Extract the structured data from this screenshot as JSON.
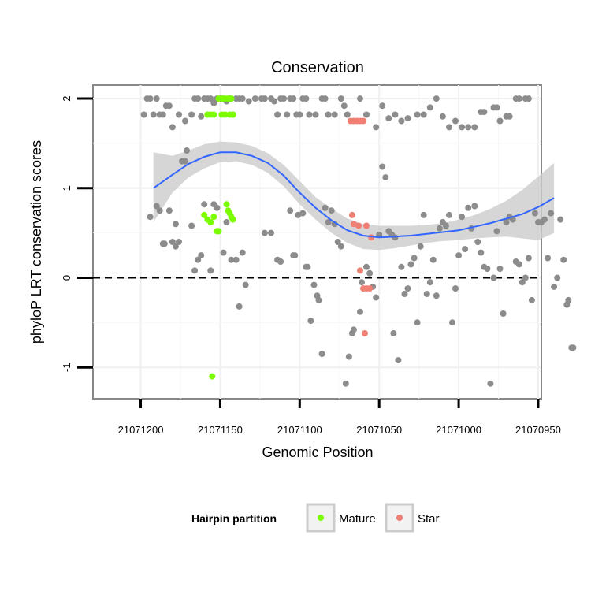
{
  "chart_data": {
    "type": "scatter",
    "title": "Conservation",
    "xlabel": "Genomic Position",
    "ylabel": "phyloP LRT conservation scores",
    "x_reversed": true,
    "xlim": [
      21071230,
      21070948
    ],
    "ylim": [
      -1.35,
      2.15
    ],
    "x_ticks": [
      21071200,
      21071150,
      21071100,
      21071050,
      21071000,
      21070950
    ],
    "x_tick_labels": [
      "21071200",
      "21071150",
      "21071100",
      "21071050",
      "21071000",
      "21070950"
    ],
    "y_ticks": [
      -1,
      0,
      1,
      2
    ],
    "y_tick_labels": [
      "-1",
      "0",
      "1",
      "2"
    ],
    "reference_line": {
      "y": 0,
      "style": "dashed"
    },
    "grid": true,
    "legend": {
      "title": "Hairpin partition",
      "position": "bottom",
      "entries": [
        {
          "label": "Mature",
          "color": "#7CFC00"
        },
        {
          "label": "Star",
          "color": "#F07F74"
        }
      ]
    },
    "colors": {
      "other": "#8C8C8C",
      "Mature": "#7CFC00",
      "Star": "#F07F74",
      "smooth": "#3366FF",
      "ribbon": "#CCCCCC"
    },
    "series": [
      {
        "name": "",
        "color": "#8C8C8C",
        "points": [
          [
            21071198,
            1.82
          ],
          [
            21071196,
            2.0
          ],
          [
            21071194,
            2.0
          ],
          [
            21071192,
            1.82
          ],
          [
            21071190,
            2.0
          ],
          [
            21071188,
            1.82
          ],
          [
            21071186,
            1.82
          ],
          [
            21071184,
            1.92
          ],
          [
            21071182,
            1.92
          ],
          [
            21071180,
            1.68
          ],
          [
            21071176,
            1.82
          ],
          [
            21071172,
            1.75
          ],
          [
            21071168,
            1.82
          ],
          [
            21071166,
            2.0
          ],
          [
            21071164,
            2.0
          ],
          [
            21071162,
            1.8
          ],
          [
            21071160,
            2.0
          ],
          [
            21071158,
            2.0
          ],
          [
            21071156,
            2.0
          ],
          [
            21071154,
            1.95
          ],
          [
            21071152,
            2.0
          ],
          [
            21071150,
            2.0
          ],
          [
            21071148,
            2.0
          ],
          [
            21071146,
            1.97
          ],
          [
            21071144,
            2.0
          ],
          [
            21071142,
            1.82
          ],
          [
            21071140,
            2.0
          ],
          [
            21071138,
            2.0
          ],
          [
            21071136,
            2.0
          ],
          [
            21071132,
            1.97
          ],
          [
            21071128,
            2.0
          ],
          [
            21071124,
            2.0
          ],
          [
            21071122,
            2.0
          ],
          [
            21071118,
            2.0
          ],
          [
            21071116,
            1.97
          ],
          [
            21071114,
            1.82
          ],
          [
            21071112,
            2.0
          ],
          [
            21071110,
            2.0
          ],
          [
            21071108,
            1.82
          ],
          [
            21071106,
            2.0
          ],
          [
            21071104,
            2.0
          ],
          [
            21071102,
            1.82
          ],
          [
            21071100,
            1.82
          ],
          [
            21071098,
            2.0
          ],
          [
            21071096,
            2.0
          ],
          [
            21071094,
            1.82
          ],
          [
            21071090,
            1.82
          ],
          [
            21071086,
            2.0
          ],
          [
            21071084,
            2.0
          ],
          [
            21071082,
            1.82
          ],
          [
            21071078,
            1.82
          ],
          [
            21071074,
            2.0
          ],
          [
            21071072,
            1.92
          ],
          [
            21071070,
            1.82
          ],
          [
            21071062,
            2.0
          ],
          [
            21071058,
            1.82
          ],
          [
            21071052,
            1.68
          ],
          [
            21071048,
            1.92
          ],
          [
            21071044,
            1.78
          ],
          [
            21071040,
            1.82
          ],
          [
            21071036,
            1.75
          ],
          [
            21071032,
            1.78
          ],
          [
            21071026,
            1.82
          ],
          [
            21071022,
            1.82
          ],
          [
            21071018,
            1.9
          ],
          [
            21071014,
            2.0
          ],
          [
            21071010,
            1.8
          ],
          [
            21071006,
            1.68
          ],
          [
            21071002,
            1.75
          ],
          [
            21070998,
            1.68
          ],
          [
            21070994,
            1.68
          ],
          [
            21070990,
            1.68
          ],
          [
            21070986,
            1.85
          ],
          [
            21070984,
            1.85
          ],
          [
            21070978,
            1.9
          ],
          [
            21070976,
            1.9
          ],
          [
            21070974,
            1.75
          ],
          [
            21070970,
            1.8
          ],
          [
            21070968,
            1.8
          ],
          [
            21070964,
            2.0
          ],
          [
            21070962,
            2.0
          ],
          [
            21070958,
            2.0
          ],
          [
            21070956,
            2.0
          ],
          [
            21071194,
            0.68
          ],
          [
            21071190,
            0.8
          ],
          [
            21071188,
            0.75
          ],
          [
            21071186,
            0.38
          ],
          [
            21071185,
            0.38
          ],
          [
            21071182,
            0.75
          ],
          [
            21071180,
            0.4
          ],
          [
            21071178,
            0.35
          ],
          [
            21071178,
            0.6
          ],
          [
            21071176,
            0.4
          ],
          [
            21071174,
            1.3
          ],
          [
            21071172,
            1.3
          ],
          [
            21071171,
            1.42
          ],
          [
            21071168,
            0.58
          ],
          [
            21071166,
            0.08
          ],
          [
            21071164,
            0.2
          ],
          [
            21071162,
            0.25
          ],
          [
            21071160,
            0.82
          ],
          [
            21071156,
            0.08
          ],
          [
            21071154,
            0.82
          ],
          [
            21071152,
            0.78
          ],
          [
            21071148,
            0.28
          ],
          [
            21071146,
            0.62
          ],
          [
            21071143,
            0.2
          ],
          [
            21071140,
            0.2
          ],
          [
            21071138,
            -0.32
          ],
          [
            21071136,
            0.28
          ],
          [
            21071134,
            -0.08
          ],
          [
            21071122,
            0.5
          ],
          [
            21071118,
            0.5
          ],
          [
            21071114,
            0.2
          ],
          [
            21071112,
            0.18
          ],
          [
            21071106,
            0.75
          ],
          [
            21071104,
            0.25
          ],
          [
            21071103,
            0.25
          ],
          [
            21071101,
            0.7
          ],
          [
            21071098,
            0.72
          ],
          [
            21071096,
            0.12
          ],
          [
            21071095,
            0.12
          ],
          [
            21071093,
            -0.48
          ],
          [
            21071091,
            -0.08
          ],
          [
            21071089,
            -0.2
          ],
          [
            21071088,
            -0.25
          ],
          [
            21071086,
            -0.85
          ],
          [
            21071084,
            0.78
          ],
          [
            21071082,
            0.62
          ],
          [
            21071080,
            0.75
          ],
          [
            21071078,
            0.6
          ],
          [
            21071076,
            0.4
          ],
          [
            21071074,
            0.35
          ],
          [
            21071071,
            -1.18
          ],
          [
            21071069,
            -0.88
          ],
          [
            21071067,
            -0.62
          ],
          [
            21071066,
            -0.58
          ],
          [
            21071062,
            -0.38
          ],
          [
            21071061,
            -0.05
          ],
          [
            21071058,
            0.12
          ],
          [
            21071056,
            0.05
          ],
          [
            21071054,
            -0.1
          ],
          [
            21071052,
            -0.22
          ],
          [
            21071050,
            0.48
          ],
          [
            21071048,
            1.24
          ],
          [
            21071046,
            1.12
          ],
          [
            21071044,
            0.52
          ],
          [
            21071042,
            0.48
          ],
          [
            21071041,
            -0.62
          ],
          [
            21071040,
            0.45
          ],
          [
            21071038,
            -0.92
          ],
          [
            21071036,
            0.12
          ],
          [
            21071034,
            -0.18
          ],
          [
            21071032,
            -0.12
          ],
          [
            21071030,
            0.15
          ],
          [
            21071028,
            0.22
          ],
          [
            21071026,
            -0.5
          ],
          [
            21071024,
            0.35
          ],
          [
            21071022,
            0.7
          ],
          [
            21071020,
            -0.18
          ],
          [
            21071018,
            -0.05
          ],
          [
            21071016,
            0.2
          ],
          [
            21071014,
            -0.2
          ],
          [
            21071012,
            0.55
          ],
          [
            21071010,
            0.62
          ],
          [
            21071008,
            0.58
          ],
          [
            21071006,
            0.7
          ],
          [
            21071004,
            -0.5
          ],
          [
            21071002,
            -0.12
          ],
          [
            21071000,
            0.25
          ],
          [
            21070998,
            0.68
          ],
          [
            21070996,
            0.32
          ],
          [
            21070994,
            0.78
          ],
          [
            21070992,
            0.55
          ],
          [
            21070990,
            0.8
          ],
          [
            21070988,
            0.4
          ],
          [
            21070986,
            0.28
          ],
          [
            21070984,
            0.12
          ],
          [
            21070982,
            0.1
          ],
          [
            21070980,
            -1.18
          ],
          [
            21070978,
            0.0
          ],
          [
            21070976,
            0.52
          ],
          [
            21070974,
            0.1
          ],
          [
            21070972,
            -0.4
          ],
          [
            21070970,
            0.62
          ],
          [
            21070968,
            0.68
          ],
          [
            21070966,
            0.65
          ],
          [
            21070964,
            0.18
          ],
          [
            21070962,
            0.15
          ],
          [
            21070960,
            -0.05
          ],
          [
            21070958,
            0.0
          ],
          [
            21070956,
            0.22
          ],
          [
            21070954,
            -0.25
          ],
          [
            21070952,
            0.72
          ],
          [
            21070950,
            0.62
          ],
          [
            21070948,
            0.62
          ],
          [
            21070946,
            0.65
          ],
          [
            21070944,
            0.22
          ],
          [
            21070942,
            0.72
          ],
          [
            21070940,
            -0.1
          ],
          [
            21070938,
            0.0
          ],
          [
            21070936,
            0.65
          ],
          [
            21070934,
            0.2
          ],
          [
            21070932,
            -0.3
          ],
          [
            21070931,
            -0.25
          ],
          [
            21070929,
            -0.78
          ],
          [
            21070928,
            -0.78
          ]
        ]
      },
      {
        "name": "Mature",
        "color": "#7CFC00",
        "points": [
          [
            21071158,
            1.82
          ],
          [
            21071156,
            1.82
          ],
          [
            21071154,
            1.82
          ],
          [
            21071151,
            2.0
          ],
          [
            21071149,
            2.0
          ],
          [
            21071147,
            2.0
          ],
          [
            21071145,
            2.0
          ],
          [
            21071143,
            2.0
          ],
          [
            21071149,
            1.82
          ],
          [
            21071147,
            1.82
          ],
          [
            21071144,
            1.82
          ],
          [
            21071142,
            1.82
          ],
          [
            21071160,
            0.7
          ],
          [
            21071158,
            0.65
          ],
          [
            21071156,
            0.62
          ],
          [
            21071154,
            0.68
          ],
          [
            21071152,
            0.52
          ],
          [
            21071151,
            0.52
          ],
          [
            21071146,
            0.82
          ],
          [
            21071145,
            0.75
          ],
          [
            21071144,
            0.72
          ],
          [
            21071143,
            0.68
          ],
          [
            21071142,
            0.65
          ],
          [
            21071155,
            -1.1
          ]
        ]
      },
      {
        "name": "Star",
        "color": "#F07F74",
        "points": [
          [
            21071068,
            1.75
          ],
          [
            21071066,
            1.75
          ],
          [
            21071064,
            1.75
          ],
          [
            21071062,
            1.75
          ],
          [
            21071060,
            1.75
          ],
          [
            21071067,
            0.7
          ],
          [
            21071066,
            0.6
          ],
          [
            21071063,
            0.58
          ],
          [
            21071058,
            0.58
          ],
          [
            21071055,
            0.45
          ],
          [
            21071062,
            0.08
          ],
          [
            21071060,
            -0.12
          ],
          [
            21071058,
            -0.12
          ],
          [
            21071056,
            -0.12
          ],
          [
            21071059,
            -0.62
          ]
        ]
      }
    ],
    "smooth": {
      "method": "loess",
      "x": [
        21071192,
        21071180,
        21071170,
        21071160,
        21071150,
        21071140,
        21071130,
        21071120,
        21071110,
        21071100,
        21071090,
        21071080,
        21071070,
        21071060,
        21071050,
        21071040,
        21071030,
        21071020,
        21071010,
        21071000,
        21070990,
        21070980,
        21070970,
        21070960,
        21070950,
        21070940
      ],
      "y": [
        1.0,
        1.15,
        1.27,
        1.35,
        1.4,
        1.4,
        1.36,
        1.28,
        1.14,
        0.95,
        0.78,
        0.64,
        0.53,
        0.47,
        0.45,
        0.46,
        0.47,
        0.49,
        0.51,
        0.53,
        0.57,
        0.61,
        0.66,
        0.71,
        0.79,
        0.89
      ],
      "lower": [
        0.62,
        0.95,
        1.12,
        1.22,
        1.29,
        1.3,
        1.26,
        1.17,
        1.02,
        0.82,
        0.65,
        0.5,
        0.39,
        0.32,
        0.31,
        0.33,
        0.36,
        0.39,
        0.41,
        0.42,
        0.44,
        0.45,
        0.46,
        0.44,
        0.42,
        0.5
      ],
      "upper": [
        1.4,
        1.36,
        1.42,
        1.49,
        1.52,
        1.51,
        1.47,
        1.39,
        1.26,
        1.08,
        0.9,
        0.77,
        0.66,
        0.6,
        0.58,
        0.58,
        0.58,
        0.59,
        0.61,
        0.65,
        0.7,
        0.77,
        0.86,
        0.98,
        1.13,
        1.28
      ]
    }
  }
}
